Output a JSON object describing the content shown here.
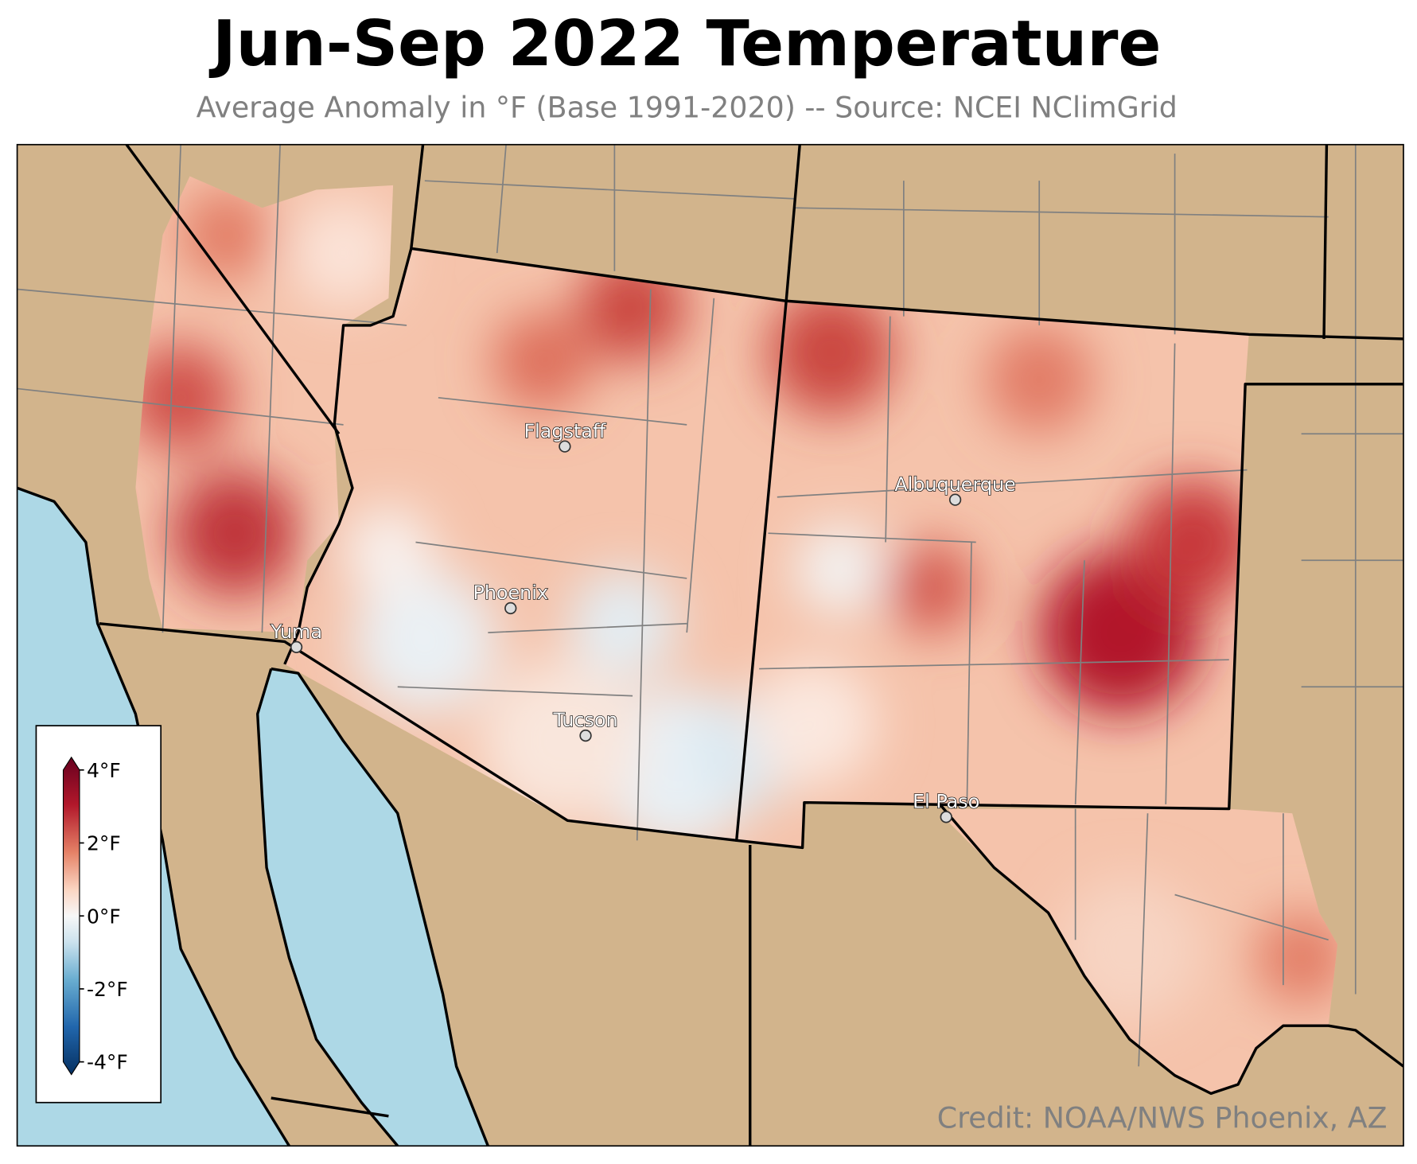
{
  "header": {
    "title": "Jun-Sep 2022 Temperature",
    "subtitle": "Average Anomaly in °F (Base 1991-2020) -- Source: NCEI NClimGrid"
  },
  "colorbar": {
    "lim": [
      -4,
      4
    ],
    "ticks": [
      {
        "value": 4,
        "label": "4°F"
      },
      {
        "value": 2,
        "label": "2°F"
      },
      {
        "value": 0,
        "label": "0°F"
      },
      {
        "value": -2,
        "label": "-2°F"
      },
      {
        "value": -4,
        "label": "-4°F"
      }
    ]
  },
  "cities": [
    "Flagstaff",
    "Albuquerque",
    "Phoenix",
    "Yuma",
    "Tucson",
    "El Paso"
  ],
  "credit": "Credit: NOAA/NWS Phoenix, AZ"
}
